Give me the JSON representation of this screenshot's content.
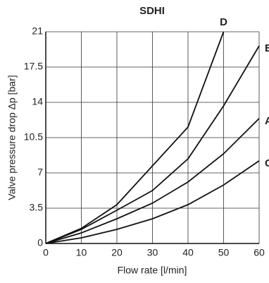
{
  "chart_data": {
    "type": "line",
    "title": "SDHI",
    "x_label": "Flow rate [l/min]",
    "y_label": "Valve pressure drop Δp [bar]",
    "x": [
      0,
      10,
      20,
      30,
      40,
      50,
      60
    ],
    "series": [
      {
        "name": "D",
        "color": "#111111",
        "values": [
          0,
          1.5,
          3.85,
          7.7,
          11.55,
          21,
          null
        ]
      },
      {
        "name": "B",
        "color": "#111111",
        "values": [
          0,
          1.4,
          3.3,
          5.25,
          8.4,
          13.65,
          19.6
        ]
      },
      {
        "name": "A",
        "color": "#111111",
        "values": [
          0,
          1.05,
          2.45,
          4,
          6.1,
          8.9,
          12.4
        ]
      },
      {
        "name": "C",
        "color": "#111111",
        "values": [
          0,
          0.56,
          1.4,
          2.45,
          3.85,
          5.8,
          8.2
        ]
      }
    ],
    "xlim": [
      0,
      60
    ],
    "xticks": [
      0,
      10,
      20,
      30,
      40,
      50,
      60
    ],
    "ylim": [
      0,
      21
    ],
    "yticks": [
      0,
      3.5,
      7,
      10.5,
      14,
      17.5,
      21
    ],
    "grid": true
  }
}
